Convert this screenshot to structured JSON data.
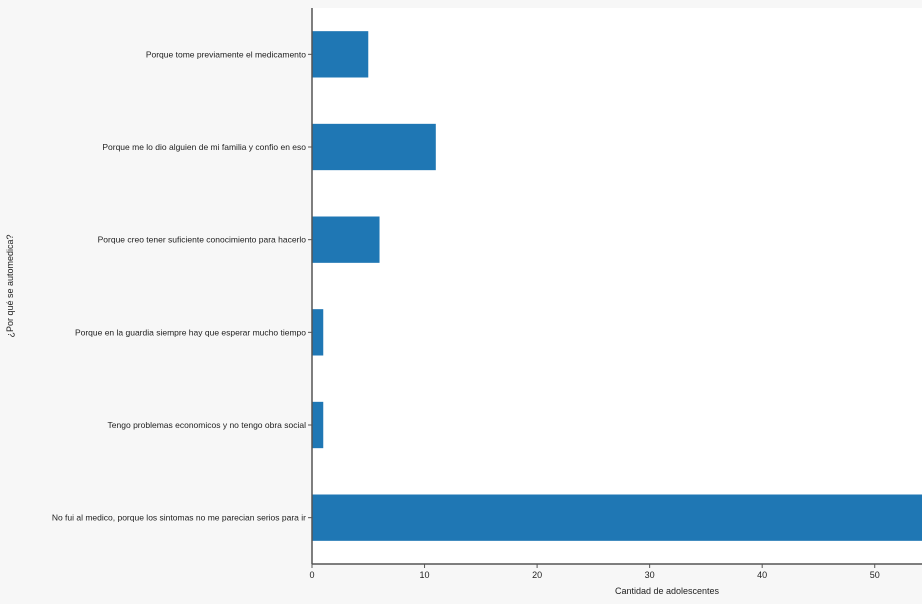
{
  "chart_data": {
    "type": "bar",
    "orientation": "horizontal",
    "categories": [
      "Porque tome previamente el medicamento",
      "Porque me lo dio alguien de mi familia y confio en eso",
      "Porque creo tener suficiente conocimiento para hacerlo",
      "Porque en la guardia siempre hay que esperar mucho tiempo",
      "Tengo problemas economicos y no tengo obra social",
      "No fui al medico, porque los sintomas no me parecian serios para ir"
    ],
    "values": [
      5,
      11,
      6,
      1,
      1,
      56
    ],
    "xlabel": "Cantidad de adolescentes",
    "ylabel": "¿Por qué se automedica?",
    "xticks": [
      0,
      10,
      20,
      30,
      40,
      50
    ],
    "xlim": [
      0,
      54.2
    ],
    "grid": false,
    "colors": {
      "bar": "#1f77b4",
      "plot_background": "#ffffff",
      "figure_background": "#f7f7f7"
    }
  }
}
